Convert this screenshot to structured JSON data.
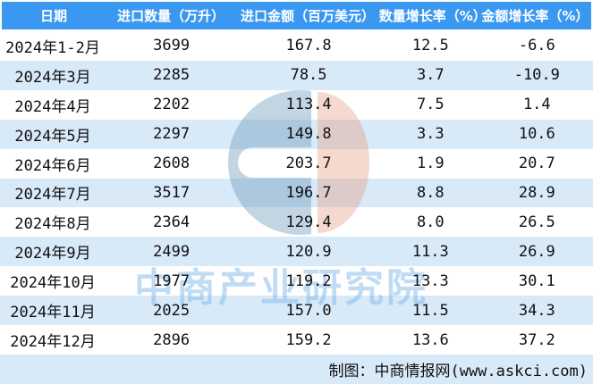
{
  "chart_data": {
    "type": "table",
    "title": "",
    "columns": [
      "日期",
      "进口数量（万升）",
      "进口金额（百万美元）",
      "数量增长率（%）",
      "金额增长率（%）"
    ],
    "rows": [
      [
        "2024年1-2月",
        "3699",
        "167.8",
        "12.5",
        "-6.6"
      ],
      [
        "2024年3月",
        "2285",
        "78.5",
        "3.7",
        "-10.9"
      ],
      [
        "2024年4月",
        "2202",
        "113.4",
        "7.5",
        "1.4"
      ],
      [
        "2024年5月",
        "2297",
        "149.8",
        "3.3",
        "10.6"
      ],
      [
        "2024年6月",
        "2608",
        "203.7",
        "1.9",
        "20.7"
      ],
      [
        "2024年7月",
        "3517",
        "196.7",
        "8.8",
        "28.9"
      ],
      [
        "2024年8月",
        "2364",
        "129.4",
        "8.0",
        "26.5"
      ],
      [
        "2024年9月",
        "2499",
        "120.9",
        "11.3",
        "26.9"
      ],
      [
        "2024年10月",
        "1977",
        "119.2",
        "13.3",
        "30.1"
      ],
      [
        "2024年11月",
        "2025",
        "157.0",
        "11.5",
        "34.3"
      ],
      [
        "2024年12月",
        "2896",
        "159.2",
        "13.6",
        "37.2"
      ]
    ],
    "layout": {
      "header_style": "solid blue bar",
      "row_striping": "alternating white / light blue",
      "alignment": "all cells centered"
    }
  },
  "footer": {
    "credit": "制图：中商情报网(www.askci.com)"
  },
  "watermark": {
    "text": "中商产业研究院",
    "logo": "askci-circle-logo"
  },
  "colors": {
    "header_bg": "#3b98f0",
    "header_text": "#ffffff",
    "stripe_bg": "#d8e9f8",
    "body_text": "#111111",
    "watermark_text": "#c8e3f7",
    "logo_blue": "#cbdce9",
    "logo_salmon": "#f2c3b0"
  }
}
